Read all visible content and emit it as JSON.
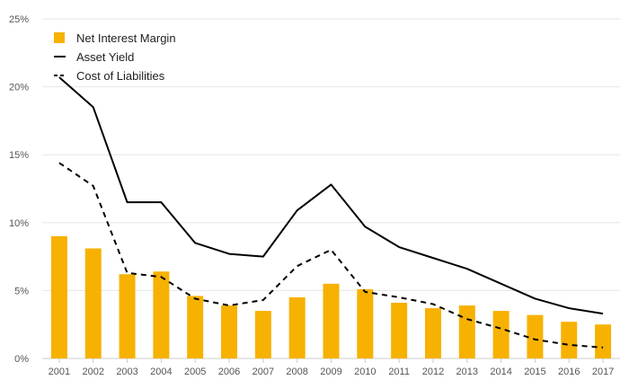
{
  "chart_data": {
    "type": "bar+line",
    "title": "",
    "xlabel": "",
    "ylabel": "",
    "ylim": [
      0,
      25
    ],
    "y_ticks": [
      0,
      5,
      10,
      15,
      20,
      25
    ],
    "y_tick_labels": [
      "0%",
      "5%",
      "10%",
      "15%",
      "20%",
      "25%"
    ],
    "grid": "horizontal",
    "legend_position": "top-left",
    "categories": [
      "2001",
      "2002",
      "2003",
      "2004",
      "2005",
      "2006",
      "2007",
      "2008",
      "2009",
      "2010",
      "2011",
      "2012",
      "2013",
      "2014",
      "2015",
      "2016",
      "2017"
    ],
    "series": [
      {
        "name": "Net Interest Margin",
        "type": "bar",
        "color": "#F7B100",
        "values": [
          9.0,
          8.1,
          6.2,
          6.4,
          4.6,
          3.9,
          3.5,
          4.5,
          5.5,
          5.1,
          4.1,
          3.7,
          3.9,
          3.5,
          3.2,
          2.7,
          2.5
        ]
      },
      {
        "name": "Asset Yield",
        "type": "line",
        "style": "solid",
        "color": "#000000",
        "values": [
          20.7,
          18.5,
          11.5,
          11.5,
          8.5,
          7.7,
          7.5,
          10.9,
          12.8,
          9.7,
          8.2,
          7.4,
          6.6,
          5.5,
          4.4,
          3.7,
          3.3
        ]
      },
      {
        "name": "Cost of Liabilities",
        "type": "line",
        "style": "dashed",
        "color": "#000000",
        "values": [
          14.4,
          12.7,
          6.3,
          6.0,
          4.4,
          3.9,
          4.3,
          6.8,
          8.0,
          4.9,
          4.5,
          4.0,
          2.9,
          2.2,
          1.4,
          1.0,
          0.8
        ]
      }
    ]
  }
}
